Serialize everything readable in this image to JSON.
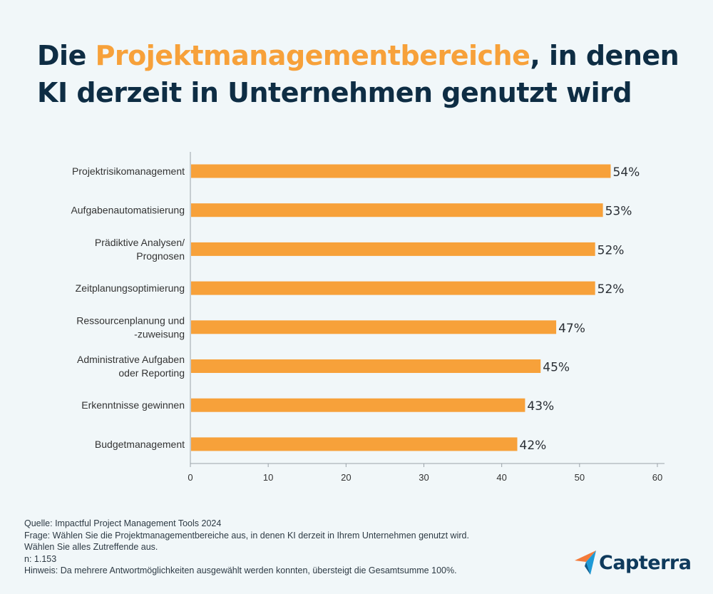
{
  "title": {
    "part1": "Die ",
    "highlight": "Projektmanagementbereiche",
    "part2": ", in denen",
    "line2": "KI derzeit in Unternehmen genutzt wird"
  },
  "colors": {
    "bar": "#f7a13a",
    "title": "#0e2d44",
    "highlight": "#f7a13a",
    "background": "#f1f7f9"
  },
  "chart_data": {
    "type": "bar",
    "orientation": "horizontal",
    "categories": [
      [
        "Projektrisikomanagement"
      ],
      [
        "Aufgabenautomatisierung"
      ],
      [
        "Prädiktive Analysen/",
        "Prognosen"
      ],
      [
        "Zeitplanungsoptimierung"
      ],
      [
        "Ressourcenplanung und",
        "-zuweisung"
      ],
      [
        "Administrative Aufgaben",
        "oder Reporting"
      ],
      [
        "Erkenntnisse gewinnen"
      ],
      [
        "Budgetmanagement"
      ]
    ],
    "values": [
      54,
      53,
      52,
      52,
      47,
      45,
      43,
      42
    ],
    "data_labels": [
      "54%",
      "53%",
      "52%",
      "52%",
      "47%",
      "45%",
      "43%",
      "42%"
    ],
    "xlim": [
      0,
      60
    ],
    "xticks": [
      "0",
      "10",
      "20",
      "30",
      "40",
      "50",
      "60"
    ],
    "grid": false
  },
  "notes": [
    "Quelle: Impactful Project Management Tools 2024",
    "Frage: Wählen Sie die Projektmanagementbereiche aus, in denen KI derzeit in Ihrem Unternehmen genutzt wird.",
    "Wählen Sie alles Zutreffende aus.",
    "n: 1.153",
    "Hinweis: Da mehrere Antwortmöglichkeiten ausgewählt werden konnten, übersteigt die Gesamtsumme 100%."
  ],
  "logo": {
    "text": "Capterra"
  }
}
